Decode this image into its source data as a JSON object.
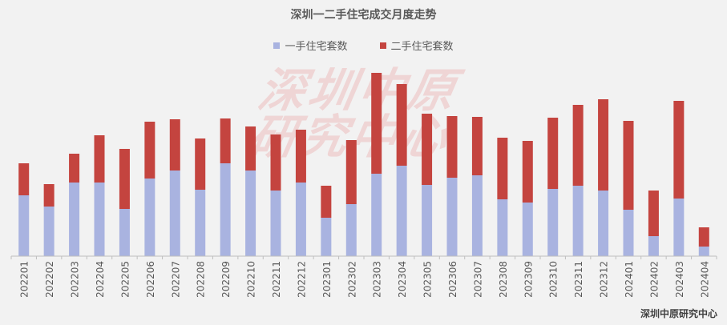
{
  "colors": {
    "series_primary": "#a9b3e0",
    "series_secondary": "#c4443f",
    "axis": "#bfbfbf",
    "tick_label": "#595959",
    "background": "#f2f2f2"
  },
  "watermark": {
    "line1": "深圳中原",
    "line2": "研究中心"
  },
  "source": "深圳中原研究中心",
  "chart_data": {
    "type": "bar",
    "stacked": true,
    "title": "深圳一二手住宅成交月度走势",
    "xlabel": "",
    "ylabel": "",
    "grid": false,
    "legend_position": "top-center",
    "ylim": [
      0,
      230
    ],
    "categories": [
      "202201",
      "202202",
      "202203",
      "202204",
      "202205",
      "202206",
      "202207",
      "202208",
      "202209",
      "202210",
      "202211",
      "202212",
      "202301",
      "202302",
      "202303",
      "202304",
      "202305",
      "202306",
      "202307",
      "202308",
      "202309",
      "202310",
      "202311",
      "202312",
      "202401",
      "202402",
      "202403",
      "202404"
    ],
    "series": [
      {
        "name": "一手住宅套数",
        "values": [
          76,
          62,
          92,
          92,
          59,
          97,
          107,
          83,
          116,
          107,
          82,
          92,
          48,
          65,
          103,
          113,
          89,
          98,
          101,
          71,
          67,
          84,
          88,
          82,
          58,
          25,
          72,
          12
        ]
      },
      {
        "name": "二手住宅套数",
        "values": [
          40,
          28,
          36,
          59,
          75,
          71,
          64,
          64,
          56,
          55,
          70,
          66,
          40,
          80,
          126,
          102,
          89,
          77,
          73,
          77,
          77,
          89,
          101,
          114,
          111,
          57,
          122,
          24
        ]
      }
    ]
  }
}
